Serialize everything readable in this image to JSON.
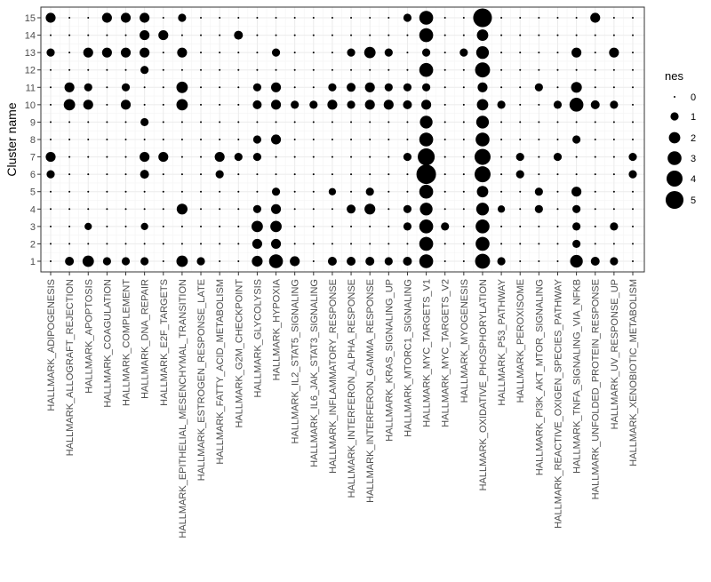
{
  "chart_data": {
    "type": "dotplot",
    "y_label": "Cluster name",
    "categories": [
      "HALLMARK_ADIPOGENESIS",
      "HALLMARK_ALLOGRAFT_REJECTION",
      "HALLMARK_APOPTOSIS",
      "HALLMARK_COAGULATION",
      "HALLMARK_COMPLEMENT",
      "HALLMARK_DNA_REPAIR",
      "HALLMARK_E2F_TARGETS",
      "HALLMARK_EPITHELIAL_MESENCHYMAL_TRANSITION",
      "HALLMARK_ESTROGEN_RESPONSE_LATE",
      "HALLMARK_FATTY_ACID_METABOLISM",
      "HALLMARK_G2M_CHECKPOINT",
      "HALLMARK_GLYCOLYSIS",
      "HALLMARK_HYPOXIA",
      "HALLMARK_IL2_STAT5_SIGNALING",
      "HALLMARK_IL6_JAK_STAT3_SIGNALING",
      "HALLMARK_INFLAMMATORY_RESPONSE",
      "HALLMARK_INTERFERON_ALPHA_RESPONSE",
      "HALLMARK_INTERFERON_GAMMA_RESPONSE",
      "HALLMARK_KRAS_SIGNALING_UP",
      "HALLMARK_MTORC1_SIGNALING",
      "HALLMARK_MYC_TARGETS_V1",
      "HALLMARK_MYC_TARGETS_V2",
      "HALLMARK_MYOGENESIS",
      "HALLMARK_OXIDATIVE_PHOSPHORYLATION",
      "HALLMARK_P53_PATHWAY",
      "HALLMARK_PEROXISOME",
      "HALLMARK_PI3K_AKT_MTOR_SIGNALING",
      "HALLMARK_REACTIVE_OXIGEN_SPECIES_PATHWAY",
      "HALLMARK_TNFA_SIGNALING_VIA_NFKB",
      "HALLMARK_UNFOLDED_PROTEIN_RESPONSE",
      "HALLMARK_UV_RESPONSE_UP",
      "HALLMARK_XENOBIOTIC_METABOLISM"
    ],
    "y_categories": [
      1,
      2,
      3,
      4,
      5,
      6,
      7,
      8,
      9,
      10,
      11,
      12,
      13,
      14,
      15
    ],
    "values": [
      [
        0,
        1.2,
        2,
        1,
        1,
        1,
        0,
        2,
        1,
        0,
        0,
        1.8,
        3,
        1.5,
        0,
        1.2,
        1.2,
        1.2,
        1,
        1.2,
        3,
        0,
        0,
        3.5,
        1,
        0,
        0,
        0,
        2.5,
        1.2,
        1,
        0
      ],
      [
        0,
        0,
        0,
        0,
        0,
        0,
        0,
        0,
        0,
        0,
        0,
        1.5,
        1.5,
        0,
        0,
        0,
        0,
        0,
        0,
        0,
        3,
        0,
        0,
        3,
        0,
        0,
        0,
        0,
        1,
        0,
        0,
        0
      ],
      [
        0,
        0,
        0.8,
        0,
        0,
        0.8,
        0,
        0,
        0,
        0,
        0,
        2,
        2,
        0,
        0,
        0,
        0,
        0,
        0,
        1,
        3,
        1,
        0,
        3,
        0,
        0,
        0,
        0,
        1,
        0,
        1,
        0
      ],
      [
        0,
        0,
        0,
        0,
        0,
        0,
        0,
        1.8,
        0,
        0,
        0,
        1,
        1.5,
        0,
        0,
        0,
        1.2,
        1.8,
        0,
        1,
        2.5,
        0,
        0,
        2.5,
        0.8,
        0,
        1,
        0,
        1,
        0,
        0,
        0
      ],
      [
        0,
        0,
        0,
        0,
        0,
        0,
        0,
        0,
        0,
        0,
        0,
        0,
        1,
        0,
        0,
        0.8,
        0,
        1,
        0,
        0,
        3,
        0,
        0,
        2,
        0,
        0,
        1,
        0,
        1.5,
        0,
        0,
        0
      ],
      [
        1,
        0,
        0,
        0,
        0,
        1.2,
        0,
        0,
        0,
        1,
        0,
        0,
        0,
        0,
        0,
        0,
        0,
        0,
        0,
        0,
        6,
        0,
        0,
        4,
        0,
        1,
        0,
        0,
        0,
        0,
        0,
        1
      ],
      [
        1.5,
        0,
        0,
        0,
        0,
        1.5,
        1.5,
        0,
        0,
        1.5,
        1,
        1,
        0,
        0,
        0,
        0,
        0,
        0,
        0,
        1,
        4.5,
        0,
        0,
        4,
        0,
        1,
        0,
        1,
        0,
        0,
        0,
        1
      ],
      [
        0,
        0,
        0,
        0,
        0,
        0,
        0,
        0,
        0,
        0,
        0,
        1,
        1.5,
        0,
        0,
        0,
        0,
        0,
        0,
        0,
        3,
        0,
        0,
        3,
        0,
        0,
        0,
        0,
        1,
        0,
        0,
        0
      ],
      [
        0,
        0,
        0,
        0,
        0,
        1,
        0,
        0,
        0,
        0,
        0,
        0,
        0,
        0,
        0,
        0,
        0,
        0,
        0,
        0,
        2.5,
        0,
        0,
        2.5,
        0,
        0,
        0,
        0,
        0,
        0,
        0,
        0
      ],
      [
        0,
        2,
        1.5,
        0,
        1.5,
        0,
        0,
        2,
        0,
        0,
        0,
        1.2,
        1.5,
        1,
        1,
        1.5,
        1,
        1.5,
        1.5,
        1.2,
        1.5,
        0,
        0,
        2,
        1,
        0,
        0,
        1,
        3,
        1.2,
        1,
        0
      ],
      [
        0,
        1.5,
        1,
        0,
        1,
        0,
        0,
        2,
        0,
        0,
        0,
        1,
        1.5,
        0,
        0,
        1,
        1.2,
        1.5,
        1,
        1,
        1,
        0,
        0,
        1.5,
        0,
        0,
        1,
        0,
        1.8,
        0,
        0,
        0
      ],
      [
        0,
        0,
        0,
        0,
        0,
        1,
        0,
        0,
        0,
        0,
        0,
        0,
        0,
        0,
        0,
        0,
        0,
        0,
        0,
        0,
        3,
        0,
        0,
        3.5,
        0,
        0,
        0,
        0,
        0,
        0,
        0,
        0
      ],
      [
        1,
        0,
        1.5,
        1.5,
        1.5,
        1.5,
        0,
        1.5,
        0,
        0,
        0,
        0,
        1,
        0,
        0,
        0,
        1,
        2,
        1,
        0,
        1,
        0,
        1,
        2.5,
        0,
        0,
        0,
        0,
        1.5,
        0,
        1.5,
        0
      ],
      [
        0,
        0,
        0,
        0,
        0,
        1.5,
        1.5,
        0,
        0,
        0,
        1.2,
        0,
        0,
        0,
        0,
        0,
        0,
        0,
        0,
        0,
        3,
        0,
        0,
        2,
        0,
        0,
        0,
        0,
        0,
        0,
        0,
        0
      ],
      [
        1.5,
        0,
        0,
        1.5,
        1.5,
        1.5,
        0,
        1,
        0,
        0,
        0,
        0,
        0,
        0,
        0,
        0,
        0,
        0,
        0,
        1,
        3,
        0,
        0,
        5.5,
        0,
        0,
        0,
        0,
        0,
        1.5,
        0,
        0
      ]
    ],
    "color": "#000000",
    "size_lim": [
      0,
      6
    ],
    "legend": {
      "title": "nes",
      "values": [
        0,
        1,
        2,
        3,
        4,
        5
      ]
    },
    "grid": true
  }
}
